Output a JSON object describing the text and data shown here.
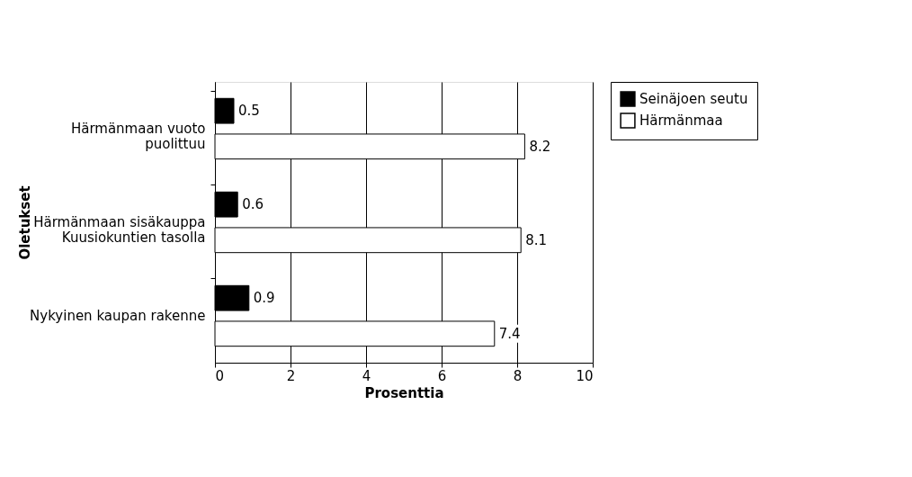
{
  "chart_data": {
    "type": "bar",
    "orientation": "horizontal",
    "xlabel": "Prosenttia",
    "ylabel": "Oletukset",
    "categories": [
      "Härmänmaan vuoto\npuolittuu",
      "Härmänmaan sisäkauppa\nKuusiokuntien tasolla",
      "Nykyinen kaupan rakenne"
    ],
    "series": [
      {
        "name": "Seinäjoen seutu",
        "color": "#000000",
        "values": [
          0.5,
          0.6,
          0.9
        ]
      },
      {
        "name": "Härmänmaa",
        "color": "#ffffff",
        "values": [
          8.2,
          8.1,
          7.4
        ]
      }
    ],
    "xlim": [
      0,
      10
    ],
    "xticks": [
      0,
      2,
      4,
      6,
      8,
      10
    ],
    "grid": "x",
    "legend": "right",
    "data_labels": true
  }
}
